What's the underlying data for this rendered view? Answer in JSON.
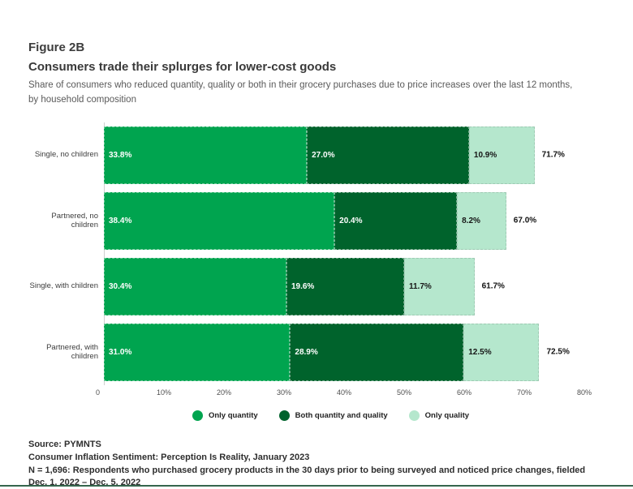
{
  "page": {
    "background": "#ffffff",
    "bottom_rule_color": "#35664d"
  },
  "header": {
    "figure_label": "Figure 2B",
    "title": "Consumers trade their splurges for lower-cost goods",
    "subtitle_line1": "Share of consumers who reduced quantity, quality or both in their grocery purchases due to price increases over the last 12 months,",
    "subtitle_line2": "by household composition"
  },
  "chart_data": {
    "type": "bar",
    "orientation": "horizontal",
    "stacked": true,
    "unit": "%",
    "categories": [
      "Single, no children",
      "Partnered, no children",
      "Single, with children",
      "Partnered, with children"
    ],
    "series": [
      {
        "name": "Only quantity",
        "color": "#00a44f",
        "label_color": "#ffffff",
        "values": [
          33.8,
          38.4,
          30.4,
          31.0
        ]
      },
      {
        "name": "Both quantity and quality",
        "color": "#00632c",
        "label_color": "#ffffff",
        "values": [
          27.0,
          20.4,
          19.6,
          28.9
        ]
      },
      {
        "name": "Only quality",
        "color": "#b5e7cd",
        "label_color": "#161616",
        "values": [
          10.9,
          8.2,
          11.7,
          12.5
        ]
      }
    ],
    "totals": [
      71.7,
      67.0,
      61.7,
      72.5
    ],
    "xlim": [
      0,
      80
    ],
    "x_ticks": [
      "0",
      "10%",
      "20%",
      "30%",
      "40%",
      "50%",
      "60%",
      "70%",
      "80%"
    ],
    "grid": false,
    "legend_position": "bottom"
  },
  "footer": {
    "lines": [
      "Source: PYMNTS",
      "Consumer Inflation Sentiment: Perception Is Reality, January 2023",
      "N = 1,696: Respondents who purchased grocery products in the 30 days prior to being surveyed and noticed price changes, fielded Dec. 1, 2022 – Dec. 5, 2022"
    ]
  }
}
